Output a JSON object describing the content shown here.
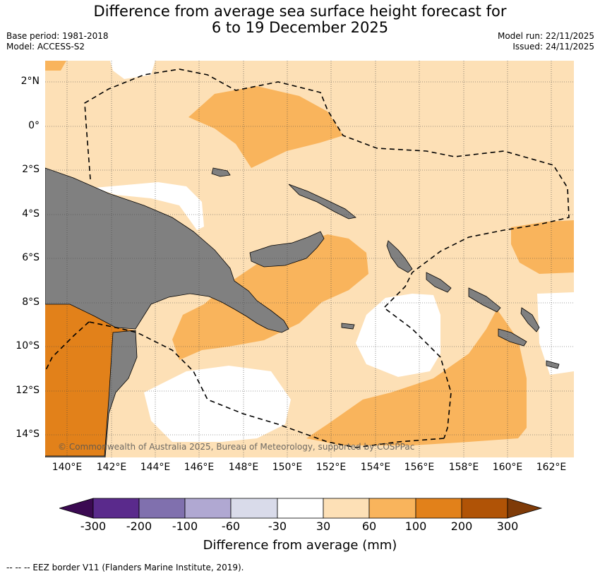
{
  "header": {
    "title_line1": "Difference from average sea surface height forecast for",
    "title_line2": "6 to 19 December 2025",
    "base_period": "Base period: 1981-2018",
    "model": "Model: ACCESS-S2",
    "model_run": "Model run: 22/11/2025",
    "issued": "Issued: 24/11/2025"
  },
  "map": {
    "lat_labels": [
      "2°N",
      "0°",
      "2°S",
      "4°S",
      "6°S",
      "8°S",
      "10°S",
      "12°S",
      "14°S"
    ],
    "lon_labels": [
      "140°E",
      "142°E",
      "144°E",
      "146°E",
      "148°E",
      "150°E",
      "152°E",
      "154°E",
      "156°E",
      "158°E",
      "160°E",
      "162°E"
    ],
    "copyright": "© Commonwealth of Australia 2025, Bureau of Meteorology, supported by COSPPac",
    "colors": {
      "land": "#808080",
      "band_30_60": "#fde0b6",
      "band_60_100": "#f9b45c",
      "band_100_200": "#e2811a",
      "neutral": "#ffffff"
    }
  },
  "colorbar": {
    "title": "Difference from average (mm)",
    "ticks": [
      "-300",
      "-200",
      "-100",
      "-60",
      "-30",
      "30",
      "60",
      "100",
      "200",
      "300"
    ],
    "colors": [
      "#3b0a52",
      "#5a2a8c",
      "#8070ae",
      "#b0a8d2",
      "#d9dbea",
      "#ffffff",
      "#fde0b6",
      "#f9b45c",
      "#e2811a",
      "#b05306",
      "#7f3b08"
    ]
  },
  "footer": {
    "legend": "--  --  -- EEZ border V11 (Flanders Marine Institute, 2019)."
  }
}
